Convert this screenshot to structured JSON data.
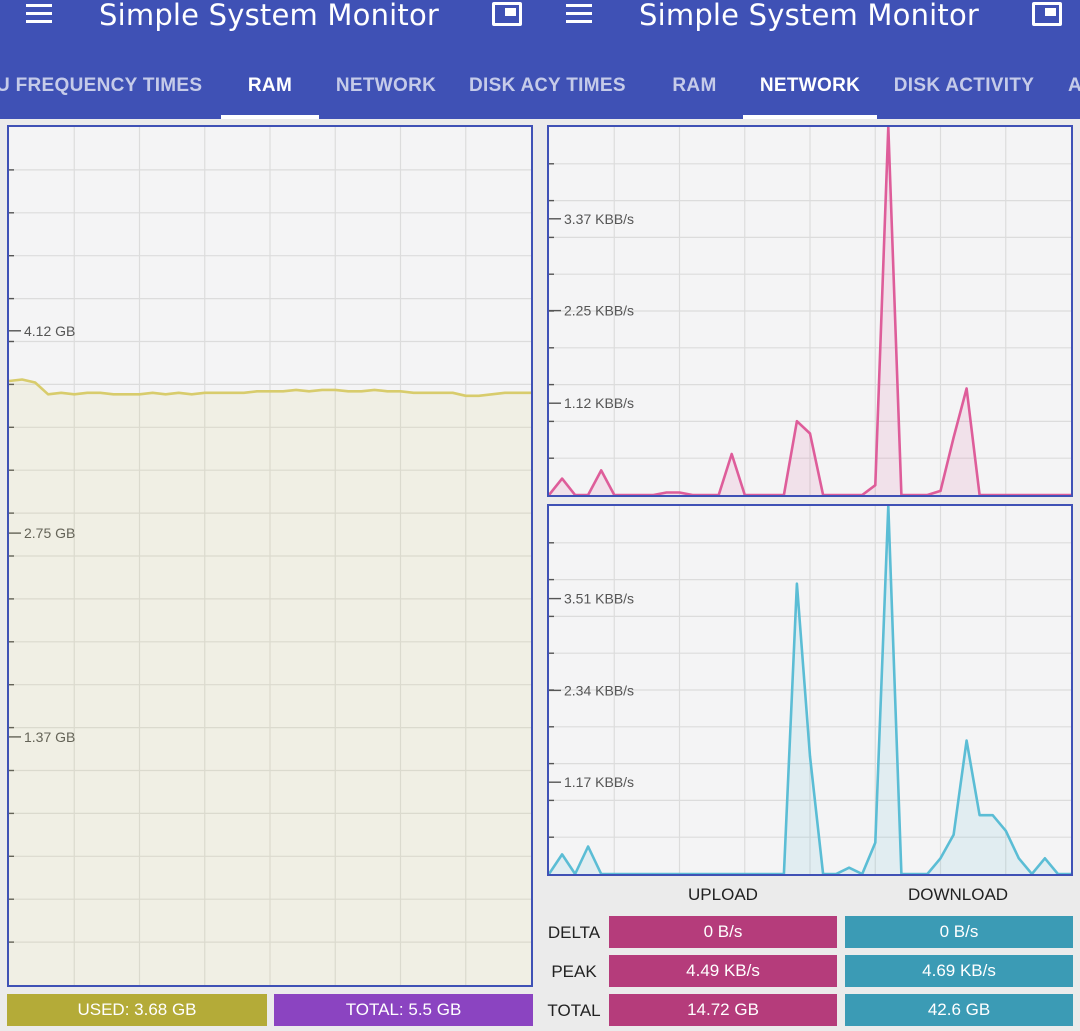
{
  "app_title": "Simple System Monitor",
  "left_tabs": [
    {
      "label": "U FREQUENCY TIMES"
    },
    {
      "label": "RAM"
    },
    {
      "label": "NETWORK"
    },
    {
      "label": "DISK ACTIVITY"
    }
  ],
  "right_tabs": [
    {
      "label": "CY TIMES"
    },
    {
      "label": "RAM"
    },
    {
      "label": "NETWORK"
    },
    {
      "label": "DISK ACTIVITY"
    },
    {
      "label": "A"
    }
  ],
  "colors": {
    "primary": "#3f51b5",
    "ram_line": "#d8cc6c",
    "used_pill": "#b4ab38",
    "total_pill": "#8b44c1",
    "upload": "#de5d9a",
    "upload_pill": "#b53c7b",
    "download": "#5bbdd5",
    "download_pill": "#3b9bb5"
  },
  "ram": {
    "used_label": "USED: 3.68 GB",
    "total_label": "TOTAL: 5.5 GB"
  },
  "network": {
    "upload_header": "UPLOAD",
    "download_header": "DOWNLOAD",
    "rows": [
      {
        "label": "DELTA",
        "upload": "0 B/s",
        "download": "0 B/s"
      },
      {
        "label": "PEAK",
        "upload": "4.49 KB/s",
        "download": "4.69 KB/s"
      },
      {
        "label": "TOTAL",
        "upload": "14.72 GB",
        "download": "42.6 GB"
      }
    ]
  },
  "chart_data": [
    {
      "name": "ram",
      "type": "area",
      "ylabel_ticks": [
        {
          "value": 4.12,
          "label": "4.12 GB"
        },
        {
          "value": 2.75,
          "label": "2.75 GB"
        },
        {
          "value": 1.37,
          "label": "1.37 GB"
        }
      ],
      "ylim": [
        -0.31,
        5.5
      ],
      "xlim": [
        0,
        40
      ],
      "x": [
        0,
        1,
        2,
        3,
        4,
        5,
        6,
        7,
        8,
        9,
        10,
        11,
        12,
        13,
        14,
        15,
        16,
        17,
        18,
        19,
        20,
        21,
        22,
        23,
        24,
        25,
        26,
        27,
        28,
        29,
        30,
        31,
        32,
        33,
        34,
        35,
        36,
        37,
        38,
        39,
        40
      ],
      "values": [
        3.78,
        3.79,
        3.77,
        3.69,
        3.7,
        3.69,
        3.7,
        3.7,
        3.69,
        3.69,
        3.69,
        3.7,
        3.69,
        3.7,
        3.69,
        3.7,
        3.7,
        3.7,
        3.7,
        3.71,
        3.71,
        3.71,
        3.72,
        3.71,
        3.72,
        3.72,
        3.71,
        3.71,
        3.72,
        3.71,
        3.71,
        3.7,
        3.7,
        3.7,
        3.7,
        3.68,
        3.68,
        3.69,
        3.7,
        3.7,
        3.7
      ]
    },
    {
      "name": "upload",
      "type": "area",
      "ylabel_ticks": [
        {
          "value": 3.37,
          "label": "3.37 KBB/s"
        },
        {
          "value": 2.25,
          "label": "2.25 KBB/s"
        },
        {
          "value": 1.12,
          "label": "1.12 KBB/s"
        }
      ],
      "ylim": [
        0,
        4.49
      ],
      "xlim": [
        0,
        40
      ],
      "x": [
        0,
        1,
        2,
        3,
        4,
        5,
        6,
        7,
        8,
        9,
        10,
        11,
        12,
        13,
        14,
        15,
        16,
        17,
        18,
        19,
        20,
        21,
        22,
        23,
        24,
        25,
        26,
        27,
        28,
        29,
        30,
        31,
        32,
        33,
        34,
        35,
        36,
        37,
        38,
        39,
        40
      ],
      "values": [
        0,
        0.2,
        0,
        0,
        0.3,
        0,
        0,
        0,
        0,
        0.03,
        0.03,
        0,
        0,
        0,
        0.5,
        0,
        0,
        0,
        0,
        0.9,
        0.75,
        0,
        0,
        0,
        0,
        0.12,
        4.49,
        0,
        0,
        0,
        0.05,
        0.7,
        1.3,
        0,
        0,
        0,
        0,
        0,
        0,
        0,
        0
      ]
    },
    {
      "name": "download",
      "type": "area",
      "ylabel_ticks": [
        {
          "value": 3.51,
          "label": "3.51 KBB/s"
        },
        {
          "value": 2.34,
          "label": "2.34 KBB/s"
        },
        {
          "value": 1.17,
          "label": "1.17 KBB/s"
        }
      ],
      "ylim": [
        0,
        4.69
      ],
      "xlim": [
        0,
        40
      ],
      "x": [
        0,
        1,
        2,
        3,
        4,
        5,
        6,
        7,
        8,
        9,
        10,
        11,
        12,
        13,
        14,
        15,
        16,
        17,
        18,
        19,
        20,
        21,
        22,
        23,
        24,
        25,
        26,
        27,
        28,
        29,
        30,
        31,
        32,
        33,
        34,
        35,
        36,
        37,
        38,
        39,
        40
      ],
      "values": [
        0,
        0.25,
        0,
        0.35,
        0,
        0,
        0,
        0,
        0,
        0,
        0,
        0,
        0,
        0,
        0,
        0,
        0,
        0,
        0,
        3.7,
        1.5,
        0,
        0,
        0.08,
        0,
        0.4,
        4.69,
        0,
        0,
        0,
        0.2,
        0.5,
        1.7,
        0.75,
        0.75,
        0.55,
        0.2,
        0,
        0.2,
        0,
        0
      ]
    }
  ]
}
